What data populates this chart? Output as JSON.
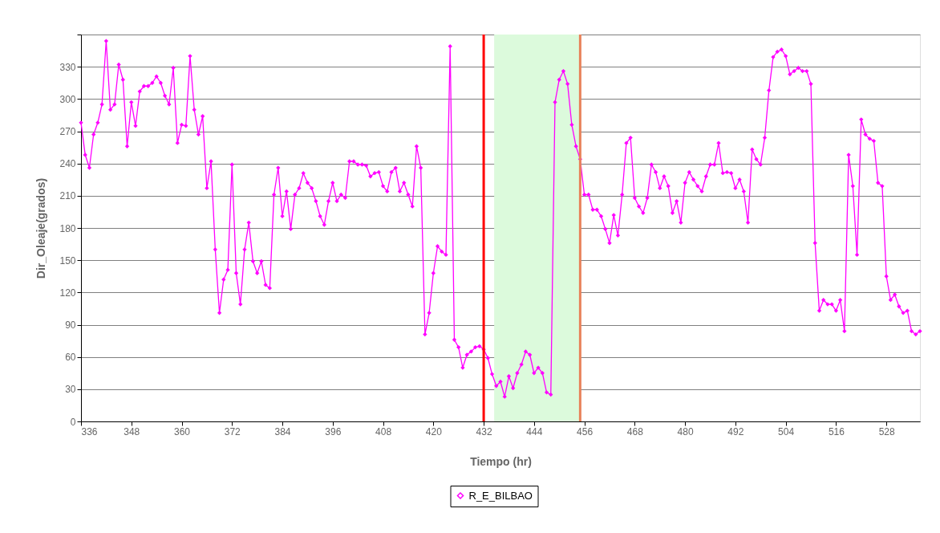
{
  "chart_data": {
    "type": "line",
    "xlabel": "Tiempo (hr)",
    "ylabel": "Dir_Oleaje(grados)",
    "x": [
      336,
      337,
      338,
      339,
      340,
      341,
      342,
      343,
      344,
      345,
      346,
      347,
      348,
      349,
      350,
      351,
      352,
      353,
      354,
      355,
      356,
      357,
      358,
      359,
      360,
      361,
      362,
      363,
      364,
      365,
      366,
      367,
      368,
      369,
      370,
      371,
      372,
      373,
      374,
      375,
      376,
      377,
      378,
      379,
      380,
      381,
      382,
      383,
      384,
      385,
      386,
      387,
      388,
      389,
      390,
      391,
      392,
      393,
      394,
      395,
      396,
      397,
      398,
      399,
      400,
      401,
      402,
      403,
      404,
      405,
      406,
      407,
      408,
      409,
      410,
      411,
      412,
      413,
      414,
      415,
      416,
      417,
      418,
      419,
      420,
      421,
      422,
      423,
      424,
      425,
      426,
      427,
      428,
      429,
      430,
      431,
      432,
      433,
      434,
      435,
      436,
      437,
      438,
      439,
      440,
      441,
      442,
      443,
      444,
      445,
      446,
      447,
      448,
      449,
      450,
      451,
      452,
      453,
      454,
      455,
      456,
      457,
      458,
      459,
      460,
      461,
      462,
      463,
      464,
      465,
      466,
      467,
      468,
      469,
      470,
      471,
      472,
      473,
      474,
      475,
      476,
      477,
      478,
      479,
      480,
      481,
      482,
      483,
      484,
      485,
      486,
      487,
      488,
      489,
      490,
      491,
      492,
      493,
      494,
      495,
      496,
      497,
      498,
      499,
      500,
      501,
      502,
      503,
      504,
      505,
      506,
      507,
      508,
      509,
      510,
      511,
      512,
      513,
      514,
      515,
      516,
      517,
      518,
      519,
      520,
      521,
      522,
      523,
      524,
      525,
      526,
      527,
      528,
      529,
      530,
      531,
      532,
      533,
      534,
      535,
      536
    ],
    "series": [
      {
        "name": "R_E_BILBAO",
        "color": "#ff00ff",
        "values": [
          278,
          248,
          236,
          267,
          278,
          295,
          354,
          290,
          295,
          332,
          318,
          256,
          297,
          275,
          307,
          312,
          312,
          315,
          321,
          315,
          303,
          295,
          329,
          259,
          276,
          275,
          340,
          290,
          267,
          284,
          217,
          242,
          160,
          101,
          132,
          141,
          239,
          138,
          109,
          160,
          185,
          149,
          138,
          149,
          127,
          124,
          211,
          236,
          191,
          214,
          179,
          211,
          217,
          231,
          222,
          217,
          205,
          191,
          183,
          205,
          222,
          205,
          211,
          208,
          242,
          242,
          239,
          239,
          238,
          228,
          231,
          232,
          219,
          214,
          232,
          236,
          214,
          222,
          211,
          200,
          256,
          236,
          81,
          101,
          138,
          163,
          158,
          155,
          349,
          76,
          69,
          50,
          62,
          65,
          69,
          70,
          67,
          59,
          44,
          33,
          37,
          23,
          42,
          31,
          45,
          53,
          65,
          62,
          45,
          50,
          45,
          27,
          25,
          297,
          318,
          326,
          314,
          276,
          256,
          244,
          211,
          211,
          197,
          197,
          191,
          179,
          166,
          192,
          173,
          211,
          259,
          264,
          208,
          200,
          194,
          208,
          239,
          232,
          217,
          228,
          219,
          194,
          205,
          185,
          222,
          232,
          225,
          219,
          214,
          228,
          239,
          239,
          259,
          231,
          232,
          231,
          217,
          225,
          214,
          185,
          253,
          244,
          239,
          264,
          308,
          339,
          344,
          346,
          340,
          323,
          326,
          329,
          326,
          326,
          314,
          166,
          103,
          113,
          109,
          109,
          103,
          113,
          84,
          248,
          219,
          155,
          281,
          267,
          263,
          261,
          222,
          219,
          135,
          113,
          118,
          107,
          101,
          103,
          84,
          81,
          84
        ]
      }
    ],
    "xlim": [
      336,
      536
    ],
    "xticks": [
      336,
      348,
      360,
      372,
      384,
      396,
      408,
      420,
      432,
      444,
      456,
      468,
      480,
      492,
      504,
      516,
      528
    ],
    "ylim": [
      0,
      360
    ],
    "yticks": [
      0,
      30,
      60,
      90,
      120,
      150,
      180,
      210,
      240,
      270,
      300,
      330,
      {
        "value": 360,
        "label": null
      }
    ],
    "grid": "y",
    "marker": "diamond",
    "line_style": "solid",
    "legend": "bottom",
    "ref_lines": [
      {
        "axis": "x",
        "value": 432,
        "label": null,
        "color": "#ff0000"
      },
      {
        "axis": "x",
        "value": 455,
        "label": null,
        "color": "#e8825a"
      }
    ],
    "bands": [
      {
        "axis": "x",
        "from": 434.5,
        "to": 455,
        "label": null,
        "color": "#dcfadc"
      }
    ]
  }
}
